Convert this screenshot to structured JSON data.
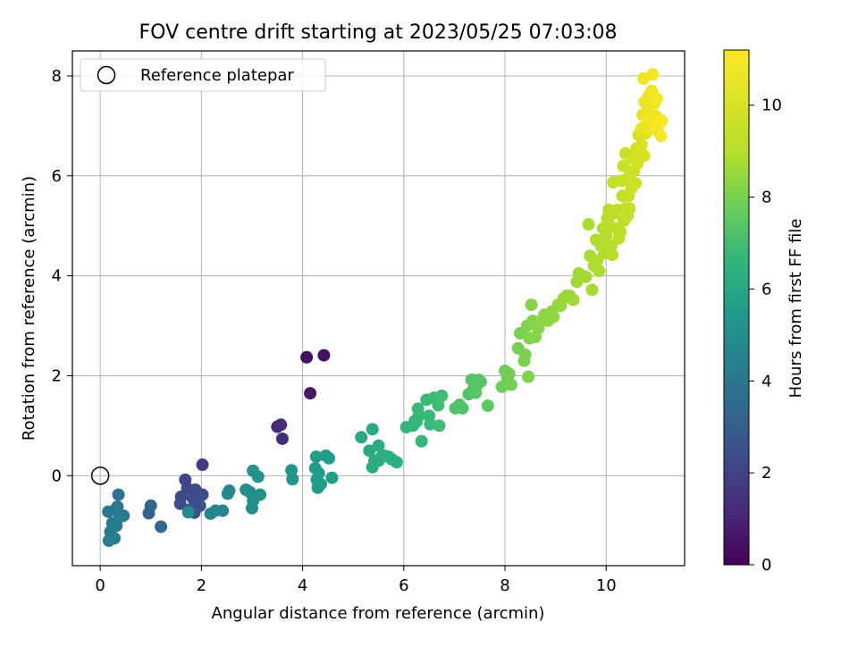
{
  "chart_data": {
    "type": "scatter",
    "title": "FOV centre drift starting at 2023/05/25 07:03:08",
    "xlabel": "Angular distance from reference (arcmin)",
    "ylabel": "Rotation from reference (arcmin)",
    "xlim": [
      -0.55,
      11.55
    ],
    "ylim": [
      -1.8,
      8.5
    ],
    "x_ticks": [
      0,
      2,
      4,
      6,
      8,
      10
    ],
    "y_ticks": [
      0,
      2,
      4,
      6,
      8
    ],
    "grid": true,
    "legend": {
      "placement": "top-left",
      "entries": [
        "Reference platepar"
      ]
    },
    "reference_point": {
      "x": 0,
      "y": 0
    },
    "colorbar": {
      "label": "Hours from first FF file",
      "range": [
        0,
        11.2
      ],
      "ticks": [
        0,
        2,
        4,
        6,
        8,
        10
      ],
      "colormap": "viridis"
    },
    "points": [
      {
        "x": 4.08,
        "y": 2.37,
        "h": 0.4
      },
      {
        "x": 4.42,
        "y": 2.41,
        "h": 0.5
      },
      {
        "x": 4.15,
        "y": 1.65,
        "h": 0.6
      },
      {
        "x": 3.5,
        "y": 0.98,
        "h": 1.2
      },
      {
        "x": 3.57,
        "y": 1.02,
        "h": 1.25
      },
      {
        "x": 3.6,
        "y": 0.74,
        "h": 1.3
      },
      {
        "x": 2.02,
        "y": 0.22,
        "h": 1.8
      },
      {
        "x": 1.68,
        "y": -0.08,
        "h": 2.1
      },
      {
        "x": 1.6,
        "y": -0.42,
        "h": 2.2
      },
      {
        "x": 1.72,
        "y": -0.25,
        "h": 2.25
      },
      {
        "x": 1.88,
        "y": -0.28,
        "h": 2.3
      },
      {
        "x": 1.94,
        "y": -0.37,
        "h": 2.3
      },
      {
        "x": 2.02,
        "y": -0.38,
        "h": 2.35
      },
      {
        "x": 1.58,
        "y": -0.56,
        "h": 2.4
      },
      {
        "x": 1.83,
        "y": -0.45,
        "h": 2.4
      },
      {
        "x": 1.97,
        "y": -0.6,
        "h": 2.45
      },
      {
        "x": 1.75,
        "y": -0.68,
        "h": 2.5
      },
      {
        "x": 1.86,
        "y": -0.74,
        "h": 2.55
      },
      {
        "x": 1.92,
        "y": -0.52,
        "h": 2.5
      },
      {
        "x": 1.0,
        "y": -0.6,
        "h": 3.2
      },
      {
        "x": 0.96,
        "y": -0.75,
        "h": 3.25
      },
      {
        "x": 1.2,
        "y": -1.02,
        "h": 3.35
      },
      {
        "x": 0.36,
        "y": -0.38,
        "h": 3.8
      },
      {
        "x": 0.46,
        "y": -0.8,
        "h": 3.9
      },
      {
        "x": 0.16,
        "y": -0.72,
        "h": 4.0
      },
      {
        "x": 0.3,
        "y": -0.68,
        "h": 4.05
      },
      {
        "x": 0.34,
        "y": -0.62,
        "h": 4.1
      },
      {
        "x": 0.24,
        "y": -0.95,
        "h": 4.1
      },
      {
        "x": 0.32,
        "y": -1.0,
        "h": 4.15
      },
      {
        "x": 0.2,
        "y": -1.12,
        "h": 4.2
      },
      {
        "x": 0.28,
        "y": -1.25,
        "h": 4.2
      },
      {
        "x": 0.17,
        "y": -1.3,
        "h": 4.25
      },
      {
        "x": 0.38,
        "y": -0.83,
        "h": 4.3
      },
      {
        "x": 2.18,
        "y": -0.76,
        "h": 4.6
      },
      {
        "x": 2.28,
        "y": -0.7,
        "h": 4.6
      },
      {
        "x": 2.42,
        "y": -0.7,
        "h": 4.65
      },
      {
        "x": 2.52,
        "y": -0.36,
        "h": 4.7
      },
      {
        "x": 2.55,
        "y": -0.3,
        "h": 4.7
      },
      {
        "x": 1.74,
        "y": -0.73,
        "h": 4.75
      },
      {
        "x": 2.88,
        "y": -0.28,
        "h": 5.0
      },
      {
        "x": 2.96,
        "y": -0.33,
        "h": 5.0
      },
      {
        "x": 3.02,
        "y": 0.1,
        "h": 5.1
      },
      {
        "x": 3.12,
        "y": -0.02,
        "h": 5.15
      },
      {
        "x": 3.16,
        "y": -0.38,
        "h": 5.1
      },
      {
        "x": 3.02,
        "y": -0.5,
        "h": 5.05
      },
      {
        "x": 3.0,
        "y": -0.65,
        "h": 5.0
      },
      {
        "x": 3.78,
        "y": 0.11,
        "h": 5.3
      },
      {
        "x": 3.8,
        "y": -0.07,
        "h": 5.3
      },
      {
        "x": 4.27,
        "y": 0.38,
        "h": 5.5
      },
      {
        "x": 4.25,
        "y": 0.15,
        "h": 5.5
      },
      {
        "x": 4.32,
        "y": 0.05,
        "h": 5.55
      },
      {
        "x": 4.28,
        "y": -0.08,
        "h": 5.55
      },
      {
        "x": 4.3,
        "y": -0.24,
        "h": 5.5
      },
      {
        "x": 4.36,
        "y": -0.17,
        "h": 5.55
      },
      {
        "x": 4.46,
        "y": 0.4,
        "h": 5.6
      },
      {
        "x": 4.52,
        "y": 0.35,
        "h": 5.6
      },
      {
        "x": 4.58,
        "y": -0.04,
        "h": 5.6
      },
      {
        "x": 5.16,
        "y": 0.77,
        "h": 6.1
      },
      {
        "x": 5.32,
        "y": 0.5,
        "h": 6.15
      },
      {
        "x": 5.38,
        "y": 0.93,
        "h": 6.2
      },
      {
        "x": 5.42,
        "y": 0.3,
        "h": 6.2
      },
      {
        "x": 5.38,
        "y": 0.17,
        "h": 6.2
      },
      {
        "x": 5.5,
        "y": 0.6,
        "h": 6.25
      },
      {
        "x": 5.56,
        "y": 0.38,
        "h": 6.3
      },
      {
        "x": 5.62,
        "y": 0.4,
        "h": 6.3
      },
      {
        "x": 5.7,
        "y": 0.38,
        "h": 6.3
      },
      {
        "x": 5.76,
        "y": 0.33,
        "h": 6.35
      },
      {
        "x": 5.86,
        "y": 0.27,
        "h": 6.35
      },
      {
        "x": 5.5,
        "y": 0.3,
        "h": 6.25
      },
      {
        "x": 6.05,
        "y": 0.97,
        "h": 6.6
      },
      {
        "x": 6.18,
        "y": 1.0,
        "h": 6.65
      },
      {
        "x": 6.25,
        "y": 1.08,
        "h": 6.7
      },
      {
        "x": 6.28,
        "y": 1.34,
        "h": 6.75
      },
      {
        "x": 6.3,
        "y": 1.2,
        "h": 6.75
      },
      {
        "x": 6.35,
        "y": 0.69,
        "h": 6.7
      },
      {
        "x": 6.45,
        "y": 1.52,
        "h": 6.8
      },
      {
        "x": 6.5,
        "y": 1.2,
        "h": 6.8
      },
      {
        "x": 6.52,
        "y": 1.03,
        "h": 6.8
      },
      {
        "x": 6.6,
        "y": 1.56,
        "h": 6.85
      },
      {
        "x": 6.68,
        "y": 1.41,
        "h": 6.9
      },
      {
        "x": 6.7,
        "y": 1.0,
        "h": 6.9
      },
      {
        "x": 6.75,
        "y": 1.6,
        "h": 6.9
      },
      {
        "x": 6.22,
        "y": 1.1,
        "h": 6.7
      },
      {
        "x": 7.02,
        "y": 1.35,
        "h": 7.2
      },
      {
        "x": 7.1,
        "y": 1.42,
        "h": 7.25
      },
      {
        "x": 7.16,
        "y": 1.35,
        "h": 7.25
      },
      {
        "x": 7.28,
        "y": 1.63,
        "h": 7.3
      },
      {
        "x": 7.34,
        "y": 1.92,
        "h": 7.35
      },
      {
        "x": 7.38,
        "y": 1.74,
        "h": 7.35
      },
      {
        "x": 7.44,
        "y": 1.8,
        "h": 7.4
      },
      {
        "x": 7.48,
        "y": 1.92,
        "h": 7.4
      },
      {
        "x": 7.52,
        "y": 1.88,
        "h": 7.4
      },
      {
        "x": 7.42,
        "y": 1.66,
        "h": 7.4
      },
      {
        "x": 7.66,
        "y": 1.4,
        "h": 7.5
      },
      {
        "x": 7.94,
        "y": 1.78,
        "h": 7.8
      },
      {
        "x": 8.0,
        "y": 2.1,
        "h": 7.85
      },
      {
        "x": 8.05,
        "y": 1.95,
        "h": 7.85
      },
      {
        "x": 8.08,
        "y": 2.04,
        "h": 7.9
      },
      {
        "x": 8.12,
        "y": 1.82,
        "h": 7.9
      },
      {
        "x": 8.26,
        "y": 2.55,
        "h": 8.0
      },
      {
        "x": 8.3,
        "y": 2.85,
        "h": 8.0
      },
      {
        "x": 8.38,
        "y": 2.3,
        "h": 8.05
      },
      {
        "x": 8.4,
        "y": 2.42,
        "h": 8.05
      },
      {
        "x": 8.44,
        "y": 3.0,
        "h": 8.1
      },
      {
        "x": 8.46,
        "y": 1.98,
        "h": 8.1
      },
      {
        "x": 8.48,
        "y": 2.75,
        "h": 8.15
      },
      {
        "x": 8.52,
        "y": 3.42,
        "h": 8.2
      },
      {
        "x": 8.55,
        "y": 3.1,
        "h": 8.2
      },
      {
        "x": 8.6,
        "y": 2.78,
        "h": 8.2
      },
      {
        "x": 8.66,
        "y": 2.95,
        "h": 8.25
      },
      {
        "x": 8.72,
        "y": 3.1,
        "h": 8.3
      },
      {
        "x": 8.78,
        "y": 3.22,
        "h": 8.3
      },
      {
        "x": 8.85,
        "y": 3.1,
        "h": 8.35
      },
      {
        "x": 8.92,
        "y": 3.28,
        "h": 8.4
      },
      {
        "x": 8.96,
        "y": 3.18,
        "h": 8.4
      },
      {
        "x": 9.05,
        "y": 3.42,
        "h": 8.45
      },
      {
        "x": 9.1,
        "y": 3.4,
        "h": 8.45
      },
      {
        "x": 9.16,
        "y": 3.55,
        "h": 8.5
      },
      {
        "x": 9.22,
        "y": 3.6,
        "h": 8.55
      },
      {
        "x": 9.28,
        "y": 3.6,
        "h": 8.55
      },
      {
        "x": 9.35,
        "y": 3.52,
        "h": 8.6
      },
      {
        "x": 9.42,
        "y": 3.88,
        "h": 8.6
      },
      {
        "x": 9.46,
        "y": 4.05,
        "h": 8.65
      },
      {
        "x": 9.52,
        "y": 4.0,
        "h": 8.65
      },
      {
        "x": 9.6,
        "y": 3.98,
        "h": 8.7
      },
      {
        "x": 9.65,
        "y": 5.03,
        "h": 8.8
      },
      {
        "x": 9.68,
        "y": 4.4,
        "h": 8.8
      },
      {
        "x": 9.72,
        "y": 3.72,
        "h": 8.75
      },
      {
        "x": 9.76,
        "y": 4.2,
        "h": 8.8
      },
      {
        "x": 9.8,
        "y": 4.72,
        "h": 8.85
      },
      {
        "x": 9.82,
        "y": 4.3,
        "h": 8.85
      },
      {
        "x": 9.86,
        "y": 4.1,
        "h": 8.85
      },
      {
        "x": 9.9,
        "y": 4.6,
        "h": 8.9
      },
      {
        "x": 9.94,
        "y": 4.95,
        "h": 8.95
      },
      {
        "x": 9.96,
        "y": 4.45,
        "h": 8.9
      },
      {
        "x": 10.0,
        "y": 4.8,
        "h": 9.0
      },
      {
        "x": 10.02,
        "y": 5.15,
        "h": 9.05
      },
      {
        "x": 10.05,
        "y": 5.32,
        "h": 9.05
      },
      {
        "x": 10.08,
        "y": 5.0,
        "h": 9.05
      },
      {
        "x": 10.1,
        "y": 4.6,
        "h": 9.0
      },
      {
        "x": 10.12,
        "y": 4.42,
        "h": 9.0
      },
      {
        "x": 10.16,
        "y": 5.25,
        "h": 9.1
      },
      {
        "x": 10.2,
        "y": 4.95,
        "h": 9.1
      },
      {
        "x": 10.22,
        "y": 5.32,
        "h": 9.15
      },
      {
        "x": 10.25,
        "y": 4.75,
        "h": 9.1
      },
      {
        "x": 10.28,
        "y": 4.88,
        "h": 9.15
      },
      {
        "x": 10.32,
        "y": 5.6,
        "h": 9.2
      },
      {
        "x": 10.35,
        "y": 5.1,
        "h": 9.2
      },
      {
        "x": 10.38,
        "y": 5.35,
        "h": 9.2
      },
      {
        "x": 10.42,
        "y": 5.2,
        "h": 9.25
      },
      {
        "x": 10.14,
        "y": 5.87,
        "h": 9.3
      },
      {
        "x": 10.3,
        "y": 5.9,
        "h": 9.35
      },
      {
        "x": 10.34,
        "y": 6.2,
        "h": 9.4
      },
      {
        "x": 10.38,
        "y": 6.45,
        "h": 9.45
      },
      {
        "x": 10.42,
        "y": 5.95,
        "h": 9.4
      },
      {
        "x": 10.44,
        "y": 5.6,
        "h": 9.35
      },
      {
        "x": 10.46,
        "y": 5.35,
        "h": 9.3
      },
      {
        "x": 10.48,
        "y": 6.05,
        "h": 9.45
      },
      {
        "x": 10.5,
        "y": 5.75,
        "h": 9.45
      },
      {
        "x": 10.52,
        "y": 6.35,
        "h": 9.5
      },
      {
        "x": 10.55,
        "y": 6.1,
        "h": 9.5
      },
      {
        "x": 10.58,
        "y": 5.85,
        "h": 9.5
      },
      {
        "x": 10.6,
        "y": 6.55,
        "h": 9.6
      },
      {
        "x": 10.62,
        "y": 6.25,
        "h": 9.6
      },
      {
        "x": 10.64,
        "y": 6.82,
        "h": 9.7
      },
      {
        "x": 10.7,
        "y": 6.62,
        "h": 9.75
      },
      {
        "x": 10.75,
        "y": 6.4,
        "h": 9.8
      },
      {
        "x": 10.78,
        "y": 6.85,
        "h": 9.9
      },
      {
        "x": 10.8,
        "y": 7.0,
        "h": 10.0
      },
      {
        "x": 10.72,
        "y": 7.22,
        "h": 10.1
      },
      {
        "x": 10.76,
        "y": 7.48,
        "h": 10.3
      },
      {
        "x": 10.74,
        "y": 7.95,
        "h": 10.6
      },
      {
        "x": 10.82,
        "y": 7.35,
        "h": 10.3
      },
      {
        "x": 10.84,
        "y": 7.6,
        "h": 10.45
      },
      {
        "x": 10.86,
        "y": 7.1,
        "h": 10.2
      },
      {
        "x": 10.9,
        "y": 7.7,
        "h": 10.55
      },
      {
        "x": 10.92,
        "y": 8.03,
        "h": 10.8
      },
      {
        "x": 10.95,
        "y": 7.45,
        "h": 10.5
      },
      {
        "x": 10.98,
        "y": 7.2,
        "h": 10.4
      },
      {
        "x": 11.0,
        "y": 7.55,
        "h": 10.7
      },
      {
        "x": 11.02,
        "y": 6.9,
        "h": 10.6
      },
      {
        "x": 11.05,
        "y": 7.05,
        "h": 10.9
      },
      {
        "x": 11.08,
        "y": 6.8,
        "h": 11.0
      },
      {
        "x": 11.1,
        "y": 7.1,
        "h": 11.1
      },
      {
        "x": 10.88,
        "y": 6.95,
        "h": 10.75
      },
      {
        "x": 10.8,
        "y": 7.15,
        "h": 10.65
      },
      {
        "x": 10.7,
        "y": 6.95,
        "h": 10.2
      }
    ]
  }
}
